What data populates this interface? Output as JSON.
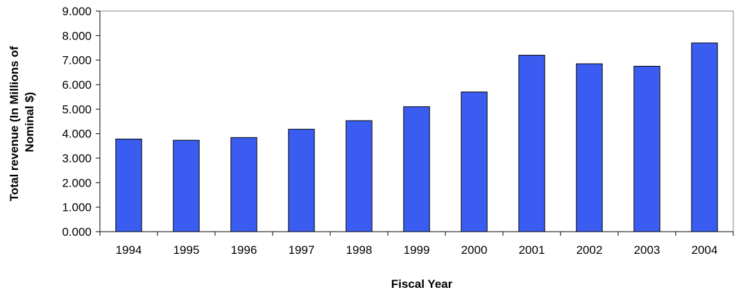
{
  "chart_data": {
    "type": "bar",
    "title": "",
    "xlabel": "Fiscal Year",
    "ylabel_lines": [
      "Total revenue (In Millions of",
      "Nominal $)"
    ],
    "categories": [
      "1994",
      "1995",
      "1996",
      "1997",
      "1998",
      "1999",
      "2000",
      "2001",
      "2002",
      "2003",
      "2004"
    ],
    "values": [
      3.78,
      3.73,
      3.84,
      4.18,
      4.53,
      5.1,
      5.7,
      7.2,
      6.85,
      6.75,
      7.7
    ],
    "ylim": [
      0,
      9
    ],
    "yticks": [
      0,
      1,
      2,
      3,
      4,
      5,
      6,
      7,
      8,
      9
    ],
    "ytick_labels": [
      "0.000",
      "1.000",
      "2.000",
      "3.000",
      "4.000",
      "5.000",
      "6.000",
      "7.000",
      "8.000",
      "9.000"
    ],
    "grid": false,
    "legend": "none",
    "bar_color": "#3b5cf0"
  }
}
